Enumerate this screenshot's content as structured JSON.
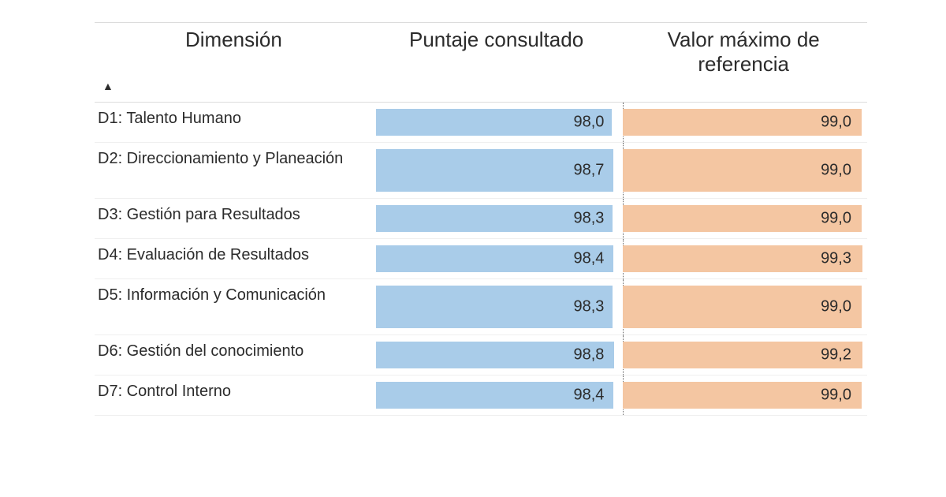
{
  "table": {
    "type": "table+bar",
    "background_color": "#ffffff",
    "row_border_color": "#efefef",
    "header_border_color": "#dcdcdc",
    "text_color": "#2b2b2b",
    "header_fontsize_pt": 20,
    "body_fontsize_pt": 15,
    "sort_indicator": "▲",
    "columns": [
      {
        "key": "dimension",
        "label": "Dimensión",
        "align": "left"
      },
      {
        "key": "score",
        "label": "Puntaje consultado",
        "align": "right",
        "bar_color": "#a9cce9",
        "scale_max": 100
      },
      {
        "key": "ref",
        "label": "Valor máximo de referencia",
        "align": "right",
        "bar_color": "#f4c6a2",
        "scale_max": 100
      }
    ],
    "rows": [
      {
        "dimension": "D1: Talento Humano",
        "score": 98.0,
        "score_label": "98,0",
        "ref": 99.0,
        "ref_label": "99,0",
        "tall": false
      },
      {
        "dimension": "D2: Direccionamiento y Planeación",
        "score": 98.7,
        "score_label": "98,7",
        "ref": 99.0,
        "ref_label": "99,0",
        "tall": true
      },
      {
        "dimension": "D3: Gestión para Resultados",
        "score": 98.3,
        "score_label": "98,3",
        "ref": 99.0,
        "ref_label": "99,0",
        "tall": false
      },
      {
        "dimension": "D4: Evaluación de Resultados",
        "score": 98.4,
        "score_label": "98,4",
        "ref": 99.3,
        "ref_label": "99,3",
        "tall": false
      },
      {
        "dimension": "D5: Información y Comunicación",
        "score": 98.3,
        "score_label": "98,3",
        "ref": 99.0,
        "ref_label": "99,0",
        "tall": true
      },
      {
        "dimension": "D6: Gestión del conocimiento",
        "score": 98.8,
        "score_label": "98,8",
        "ref": 99.2,
        "ref_label": "99,2",
        "tall": false
      },
      {
        "dimension": "D7: Control Interno",
        "score": 98.4,
        "score_label": "98,4",
        "ref": 99.0,
        "ref_label": "99,0",
        "tall": false
      }
    ]
  }
}
